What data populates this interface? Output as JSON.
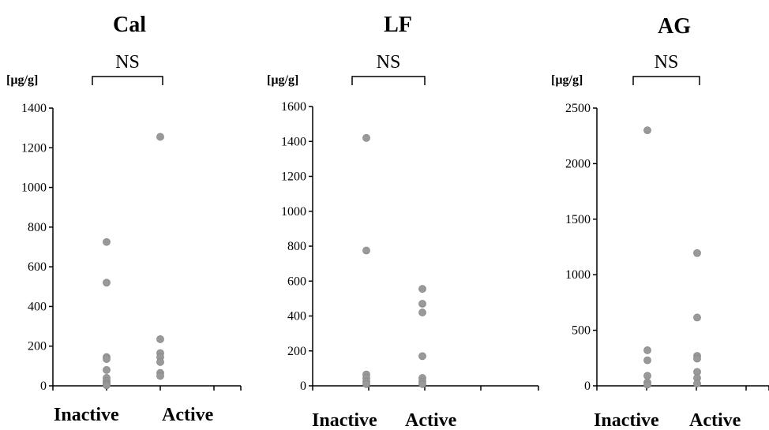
{
  "chart_data": [
    {
      "type": "scatter",
      "title": "Cal",
      "significance": "NS",
      "unit_label": "[µg/g]",
      "categories": [
        "Inactive",
        "Active"
      ],
      "ylim": [
        0,
        1400
      ],
      "yticks": [
        0,
        200,
        400,
        600,
        800,
        1000,
        1200,
        1400
      ],
      "series": [
        {
          "category": "Inactive",
          "values": [
            725,
            520,
            145,
            135,
            80,
            40,
            25,
            15,
            8,
            3
          ]
        },
        {
          "category": "Active",
          "values": [
            1255,
            235,
            165,
            145,
            120,
            65,
            50
          ]
        }
      ],
      "grid": false
    },
    {
      "type": "scatter",
      "title": "LF",
      "significance": "NS",
      "unit_label": "[µg/g]",
      "categories": [
        "Inactive",
        "Active"
      ],
      "ylim": [
        0,
        1600
      ],
      "yticks": [
        0,
        200,
        400,
        600,
        800,
        1000,
        1200,
        1400,
        1600
      ],
      "series": [
        {
          "category": "Inactive",
          "values": [
            1420,
            775,
            65,
            45,
            25,
            10
          ]
        },
        {
          "category": "Active",
          "values": [
            555,
            470,
            420,
            170,
            45,
            25,
            10
          ]
        }
      ],
      "grid": false
    },
    {
      "type": "scatter",
      "title": "AG",
      "significance": "NS",
      "unit_label": "[µg/g]",
      "categories": [
        "Inactive",
        "Active"
      ],
      "ylim": [
        0,
        2500
      ],
      "yticks": [
        0,
        500,
        1000,
        1500,
        2000,
        2500
      ],
      "series": [
        {
          "category": "Inactive",
          "values": [
            2300,
            320,
            230,
            90,
            30,
            10
          ]
        },
        {
          "category": "Active",
          "values": [
            1195,
            615,
            270,
            245,
            125,
            70,
            20
          ]
        }
      ],
      "grid": false
    }
  ],
  "colors": {
    "point_fill": "#999999",
    "point_stroke": "#888888",
    "axis": "#000000"
  }
}
